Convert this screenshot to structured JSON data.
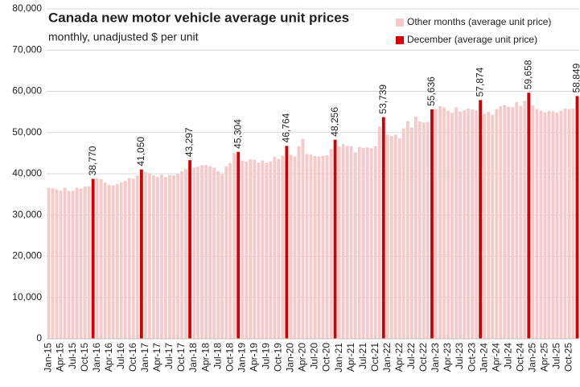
{
  "chart_data": {
    "type": "bar",
    "title": "Canada new motor vehicle average unit prices",
    "subtitle": "monthly, unadjusted $ per unit",
    "categories": [
      "Jan-15",
      null,
      null,
      "Apr-15",
      null,
      null,
      "Jul-15",
      null,
      null,
      "Oct-15",
      null,
      null,
      "Jan-16",
      null,
      null,
      "Apr-16",
      null,
      null,
      "Jul-16",
      null,
      null,
      "Oct-16",
      null,
      null,
      "Jan-17",
      null,
      null,
      "Apr-17",
      null,
      null,
      "Jul-17",
      null,
      null,
      "Oct-17",
      null,
      null,
      "Jan-18",
      null,
      null,
      "Apr-18",
      null,
      null,
      "Jul-18",
      null,
      null,
      "Oct-18",
      null,
      null,
      "Jan-19",
      null,
      null,
      "Apr-19",
      null,
      null,
      "Jul-19",
      null,
      null,
      "Oct-19",
      null,
      null,
      "Jan-20",
      null,
      null,
      "Apr-20",
      null,
      null,
      "Jul-20",
      null,
      null,
      "Oct-20",
      null,
      null,
      "Jan-21",
      null,
      null,
      "Apr-21",
      null,
      null,
      "Jul-21",
      null,
      null,
      "Oct-21",
      null,
      null,
      "Jan-22",
      null,
      null,
      "Apr-22",
      null,
      null,
      "Jul-22",
      null,
      null,
      "Oct-22",
      null,
      null,
      "Jan-23",
      null,
      null,
      "Apr-23",
      null,
      null,
      "Jul-23",
      null,
      null,
      "Oct-23",
      null,
      null,
      "Jan-24",
      null,
      null,
      "Apr-24",
      null,
      null,
      "Jul-24",
      null,
      null,
      "Oct-24",
      null,
      null,
      "Jan-25",
      null,
      null,
      "Apr-25",
      null,
      null,
      "Jul-25",
      null,
      null,
      "Oct-25",
      null,
      null
    ],
    "series": [
      {
        "name": "Other months (average unit price)",
        "color": "#f8c9c9",
        "values": [
          36600,
          36500,
          36200,
          35900,
          36600,
          35800,
          35900,
          36600,
          36400,
          36900,
          37000,
          null,
          38900,
          38700,
          37900,
          37300,
          37200,
          37500,
          37900,
          38300,
          39000,
          38800,
          39600,
          null,
          40400,
          40100,
          39600,
          39300,
          39800,
          39200,
          39700,
          39600,
          40000,
          40600,
          41200,
          null,
          41500,
          41700,
          42100,
          42100,
          41800,
          41500,
          40600,
          39900,
          41800,
          42600,
          45000,
          null,
          43200,
          43000,
          43500,
          43400,
          42700,
          43200,
          42700,
          43000,
          44100,
          43600,
          44400,
          null,
          44600,
          44200,
          46700,
          48500,
          44800,
          44700,
          44300,
          44200,
          44400,
          44500,
          46000,
          null,
          46600,
          47200,
          46800,
          46700,
          45200,
          46500,
          46300,
          46400,
          46200,
          46700,
          51500,
          null,
          49500,
          49200,
          49500,
          48600,
          51000,
          52800,
          51200,
          53900,
          52700,
          52400,
          52600,
          null,
          55700,
          56400,
          56100,
          55300,
          54800,
          56100,
          55100,
          55400,
          55800,
          55600,
          55400,
          null,
          54500,
          55000,
          54300,
          55700,
          56400,
          56700,
          56300,
          56200,
          57400,
          56500,
          57700,
          null,
          56600,
          55700,
          55300,
          54900,
          55200,
          55100,
          54800,
          55300,
          55800,
          55700,
          55800,
          null
        ]
      },
      {
        "name": "December (average unit price)",
        "color": "#d40000",
        "values": [
          null,
          null,
          null,
          null,
          null,
          null,
          null,
          null,
          null,
          null,
          null,
          38770,
          null,
          null,
          null,
          null,
          null,
          null,
          null,
          null,
          null,
          null,
          null,
          41050,
          null,
          null,
          null,
          null,
          null,
          null,
          null,
          null,
          null,
          null,
          null,
          43297,
          null,
          null,
          null,
          null,
          null,
          null,
          null,
          null,
          null,
          null,
          null,
          45304,
          null,
          null,
          null,
          null,
          null,
          null,
          null,
          null,
          null,
          null,
          null,
          46764,
          null,
          null,
          null,
          null,
          null,
          null,
          null,
          null,
          null,
          null,
          null,
          48256,
          null,
          null,
          null,
          null,
          null,
          null,
          null,
          null,
          null,
          null,
          null,
          53739,
          null,
          null,
          null,
          null,
          null,
          null,
          null,
          null,
          null,
          null,
          null,
          55636,
          null,
          null,
          null,
          null,
          null,
          null,
          null,
          null,
          null,
          null,
          null,
          57874,
          null,
          null,
          null,
          null,
          null,
          null,
          null,
          null,
          null,
          null,
          null,
          59658,
          null,
          null,
          null,
          null,
          null,
          null,
          null,
          null,
          null,
          null,
          null,
          58849
        ],
        "value_labels": [
          null,
          null,
          null,
          null,
          null,
          null,
          null,
          null,
          null,
          null,
          null,
          "38,770",
          null,
          null,
          null,
          null,
          null,
          null,
          null,
          null,
          null,
          null,
          null,
          "41,050",
          null,
          null,
          null,
          null,
          null,
          null,
          null,
          null,
          null,
          null,
          null,
          "43,297",
          null,
          null,
          null,
          null,
          null,
          null,
          null,
          null,
          null,
          null,
          null,
          "45,304",
          null,
          null,
          null,
          null,
          null,
          null,
          null,
          null,
          null,
          null,
          null,
          "46,764",
          null,
          null,
          null,
          null,
          null,
          null,
          null,
          null,
          null,
          null,
          null,
          "48,256",
          null,
          null,
          null,
          null,
          null,
          null,
          null,
          null,
          null,
          null,
          null,
          "53,739",
          null,
          null,
          null,
          null,
          null,
          null,
          null,
          null,
          null,
          null,
          null,
          "55,636",
          null,
          null,
          null,
          null,
          null,
          null,
          null,
          null,
          null,
          null,
          null,
          "57,874",
          null,
          null,
          null,
          null,
          null,
          null,
          null,
          null,
          null,
          null,
          null,
          "59,658",
          null,
          null,
          null,
          null,
          null,
          null,
          null,
          null,
          null,
          null,
          null,
          "58,849"
        ]
      }
    ],
    "ylim": [
      0,
      80000
    ],
    "yticks": [
      0,
      {
        "value": 10000,
        "label": "10,000"
      },
      {
        "value": 20000,
        "label": "20,000"
      },
      {
        "value": 30000,
        "label": "30,000"
      },
      {
        "value": 40000,
        "label": "40,000"
      },
      {
        "value": 50000,
        "label": "50,000"
      },
      {
        "value": 60000,
        "label": "60,000"
      },
      {
        "value": 70000,
        "label": "70,000"
      },
      {
        "value": 80000,
        "label": "80,000"
      }
    ],
    "grid": true,
    "legend": "upper right"
  }
}
